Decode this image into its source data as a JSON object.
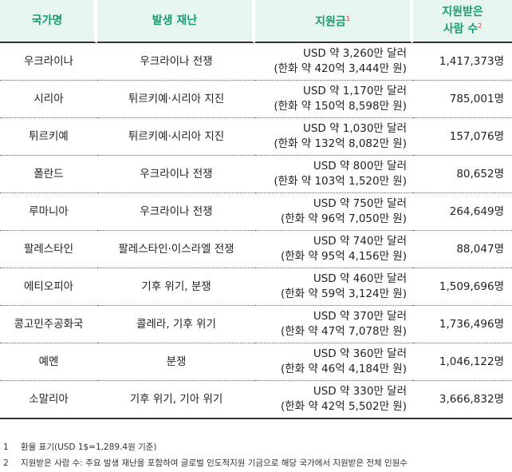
{
  "header": {
    "country": "국가명",
    "disaster": "발생 재난",
    "funding": "지원금",
    "funding_note": "1",
    "people_line1": "지원받은",
    "people_line2": "사람 수",
    "people_note": "2"
  },
  "rows": [
    {
      "country": "우크라이나",
      "disaster": "우크라이나 전쟁",
      "usd": "USD 약 3,260만 달러",
      "krw": "(한화 약 420억 3,444만 원)",
      "people": "1,417,373명"
    },
    {
      "country": "시리아",
      "disaster": "튀르키예·시리아 지진",
      "usd": "USD 약 1,170만 달러",
      "krw": "(한화 약 150억 8,598만 원)",
      "people": "785,001명"
    },
    {
      "country": "튀르키예",
      "disaster": "튀르키예·시리아 지진",
      "usd": "USD 약 1,030만 달러",
      "krw": "(한화 약 132억 8,082만 원)",
      "people": "157,076명"
    },
    {
      "country": "폴란드",
      "disaster": "우크라이나 전쟁",
      "usd": "USD 약 800만 달러",
      "krw": "(한화 약 103억 1,520만 원)",
      "people": "80,652명"
    },
    {
      "country": "루마니아",
      "disaster": "우크라이나 전쟁",
      "usd": "USD 약 750만 달러",
      "krw": "(한화 약 96억 7,050만 원)",
      "people": "264,649명"
    },
    {
      "country": "팔레스타인",
      "disaster": "팔레스타인·이스라엘 전쟁",
      "usd": "USD 약 740만 달러",
      "krw": "(한화 약 95억 4,156만 원)",
      "people": "88,047명"
    },
    {
      "country": "에티오피아",
      "disaster": "기후 위기, 분쟁",
      "usd": "USD 약 460만 달러",
      "krw": "(한화 약 59억 3,124만 원)",
      "people": "1,509,696명"
    },
    {
      "country": "콩고민주공화국",
      "disaster": "콜레라, 기후 위기",
      "usd": "USD 약 370만 달러",
      "krw": "(한화 약 47억 7,078만 원)",
      "people": "1,736,496명"
    },
    {
      "country": "예멘",
      "disaster": "분쟁",
      "usd": "USD 약 360만 달러",
      "krw": "(한화 약 46억 4,184만 원)",
      "people": "1,046,122명"
    },
    {
      "country": "소말리아",
      "disaster": "기후 위기, 기아 위기",
      "usd": "USD 약 330만 달러",
      "krw": "(한화 약 42억 5,502만 원)",
      "people": "3,666,832명"
    }
  ],
  "footnotes": [
    {
      "num": "1",
      "text": "환율 표기(USD 1$=1,289.4원 기준)"
    },
    {
      "num": "2",
      "text": "지원받은 사람 수: 주요 발생 재난을 포함하여 글로벌 인도적지원 기금으로 해당 국가에서 지원받은 전체 인원수"
    }
  ]
}
